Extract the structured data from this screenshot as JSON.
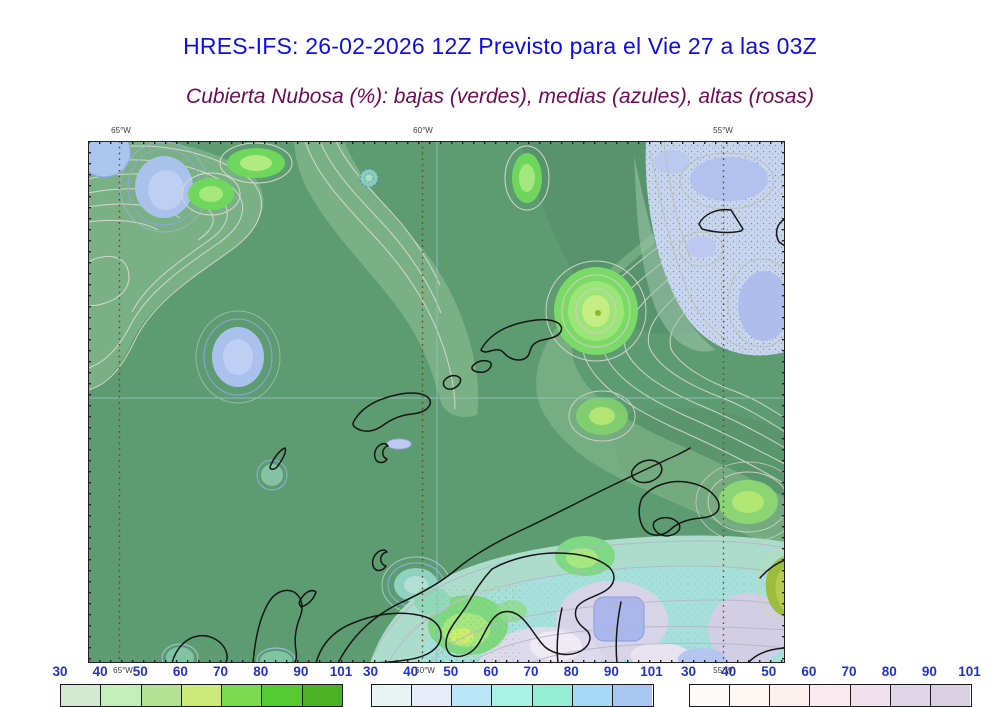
{
  "header": {
    "title": "HRES-IFS: 26-02-2026 12Z Previsto para el Vie 27 a las 03Z",
    "title_color": "#0d0deb",
    "subtitle": "Cubierta Nubosa (%): bajas (verdes), medias (azules), altas (rosas)",
    "subtitle_color": "#6e0a55"
  },
  "map": {
    "background_color": "#5d9b71",
    "coastline_color": "#161616",
    "contour_color": "#dcdcd2",
    "grid_dot_color": "#7c3f22",
    "graticule_color": "#93bcd6",
    "border_color": "#222222",
    "top_axis_labels": [
      {
        "text": "65°W"
      },
      {
        "text": "60°W"
      },
      {
        "text": "55°W"
      }
    ],
    "bottom_axis_labels": [
      {
        "text": "65°W"
      },
      {
        "text": "60°W"
      },
      {
        "text": "55°W"
      }
    ]
  },
  "colorbars": {
    "label_color": "#2230cf",
    "tick_labels": [
      "30",
      "40",
      "50",
      "60",
      "70",
      "80",
      "90",
      "101"
    ],
    "bars": [
      {
        "name": "cubierta-baja-verdes",
        "colors": [
          "#d2ead0",
          "#c6eebb",
          "#b4e295",
          "#cde97a",
          "#7bda4d",
          "#56cb31",
          "#4cb224"
        ]
      },
      {
        "name": "cubierta-media-azules",
        "colors": [
          "#e8f4f4",
          "#e6ecf8",
          "#b9e7f8",
          "#a9f1e3",
          "#93eed3",
          "#a6d9f8",
          "#a9c6f2"
        ]
      },
      {
        "name": "cubierta-alta-rosas",
        "colors": [
          "#fdfafa",
          "#fdf7f3",
          "#fdf1ef",
          "#fae9ee",
          "#f2e0ee",
          "#dfd5e9",
          "#dbcfe2"
        ]
      }
    ]
  }
}
